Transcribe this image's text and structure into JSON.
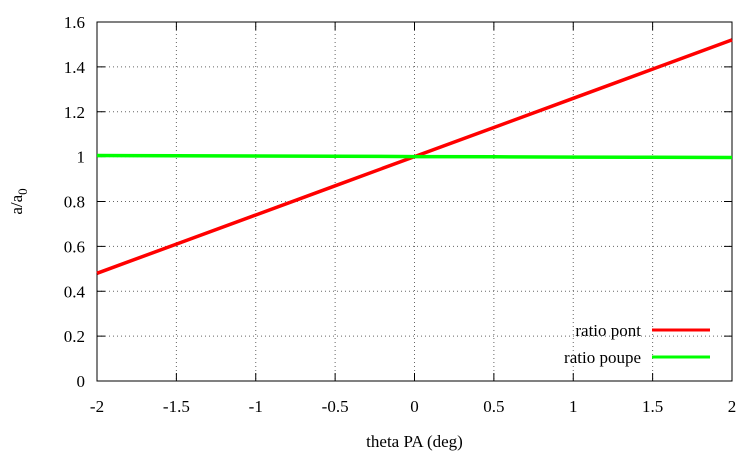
{
  "chart_data": {
    "type": "line",
    "xlabel": "theta PA (deg)",
    "ylabel": {
      "base": "a/a",
      "subscript": "0"
    },
    "xlim": [
      -2,
      2
    ],
    "ylim": [
      0,
      1.6
    ],
    "xticks": [
      "-2",
      "-1.5",
      "-1",
      "-0.5",
      "0",
      "0.5",
      "1",
      "1.5",
      "2"
    ],
    "yticks": [
      "0",
      "0.2",
      "0.4",
      "0.6",
      "0.8",
      "1",
      "1.2",
      "1.4",
      "1.6"
    ],
    "grid": true,
    "legend_position": "bottom-right",
    "series": [
      {
        "name": "ratio pont",
        "color": "#ff0000",
        "x": [
          -2,
          -1.5,
          -1,
          -0.5,
          0,
          0.5,
          1,
          1.5,
          2
        ],
        "y": [
          0.48,
          0.61,
          0.74,
          0.87,
          1.0,
          1.13,
          1.26,
          1.39,
          1.52
        ]
      },
      {
        "name": "ratio poupe",
        "color": "#00ff00",
        "x": [
          -2,
          -1.5,
          -1,
          -0.5,
          0,
          0.5,
          1,
          1.5,
          2
        ],
        "y": [
          1.005,
          1.004,
          1.003,
          1.002,
          1.0,
          0.999,
          0.998,
          0.997,
          0.996
        ]
      }
    ]
  }
}
